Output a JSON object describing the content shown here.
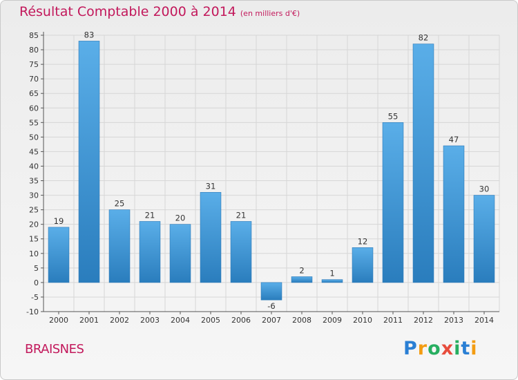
{
  "header": {
    "title": "Résultat Comptable 2000 à 2014",
    "subtitle": "(en milliers d'€)"
  },
  "footer": {
    "place": "BRAISNES",
    "logo_letters": [
      "P",
      "r",
      "o",
      "x",
      "i",
      "t",
      "i"
    ],
    "logo_colors": [
      "#2a7fd4",
      "#f39c12",
      "#27ae60",
      "#e74c3c",
      "#27ae60",
      "#2a7fd4",
      "#f39c12"
    ]
  },
  "colors": {
    "bar_light": "#5aaee8",
    "bar_dark": "#2a7dbd",
    "title": "#c2185b",
    "grid": "#d6d6d6"
  },
  "chart_data": {
    "type": "bar",
    "title": "Résultat Comptable 2000 à 2014",
    "subtitle": "(en milliers d'€)",
    "categories": [
      "2000",
      "2001",
      "2002",
      "2003",
      "2004",
      "2005",
      "2006",
      "2007",
      "2008",
      "2009",
      "2010",
      "2011",
      "2012",
      "2013",
      "2014"
    ],
    "values": [
      19,
      83,
      25,
      21,
      20,
      31,
      21,
      -6,
      2,
      1,
      12,
      55,
      82,
      47,
      30
    ],
    "ylim": [
      -10,
      85
    ],
    "yticks": [
      85,
      80,
      75,
      70,
      65,
      60,
      55,
      50,
      45,
      40,
      35,
      30,
      25,
      20,
      15,
      10,
      5,
      0,
      -5,
      -10
    ],
    "grid": true,
    "legend": "none"
  }
}
